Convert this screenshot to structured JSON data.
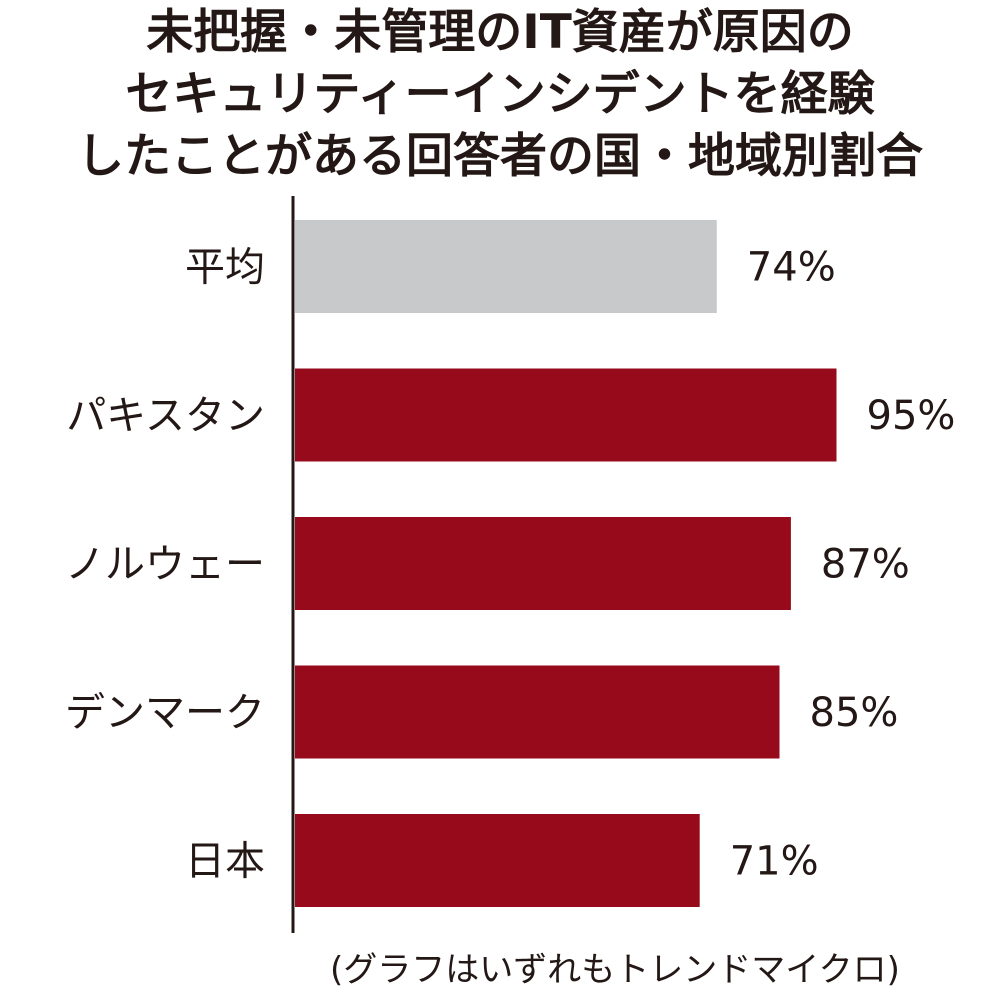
{
  "title_lines": [
    "未把握・未管理のIT資産が原因の",
    "セキュリティーインシデントを経験",
    "したことがある回答者の国・地域別割合"
  ],
  "footnote": "(グラフはいずれもトレンドマイクロ)",
  "colors": {
    "average": "#c8c9ca",
    "country": "#960a1c",
    "axis": "#231815",
    "text": "#231815"
  },
  "chart_data": {
    "type": "bar",
    "orientation": "horizontal",
    "title": "未把握・未管理のIT資産が原因のセキュリティーインシデントを経験したことがある回答者の国・地域別割合",
    "categories": [
      "平均",
      "パキスタン",
      "ノルウェー",
      "デンマーク",
      "日本"
    ],
    "values": [
      74,
      95,
      87,
      85,
      71
    ],
    "value_labels": [
      "74%",
      "95%",
      "87%",
      "85%",
      "71%"
    ],
    "highlight": [
      true,
      false,
      false,
      false,
      false
    ],
    "xlim": [
      0,
      100
    ],
    "grid": false,
    "legend": "none"
  }
}
